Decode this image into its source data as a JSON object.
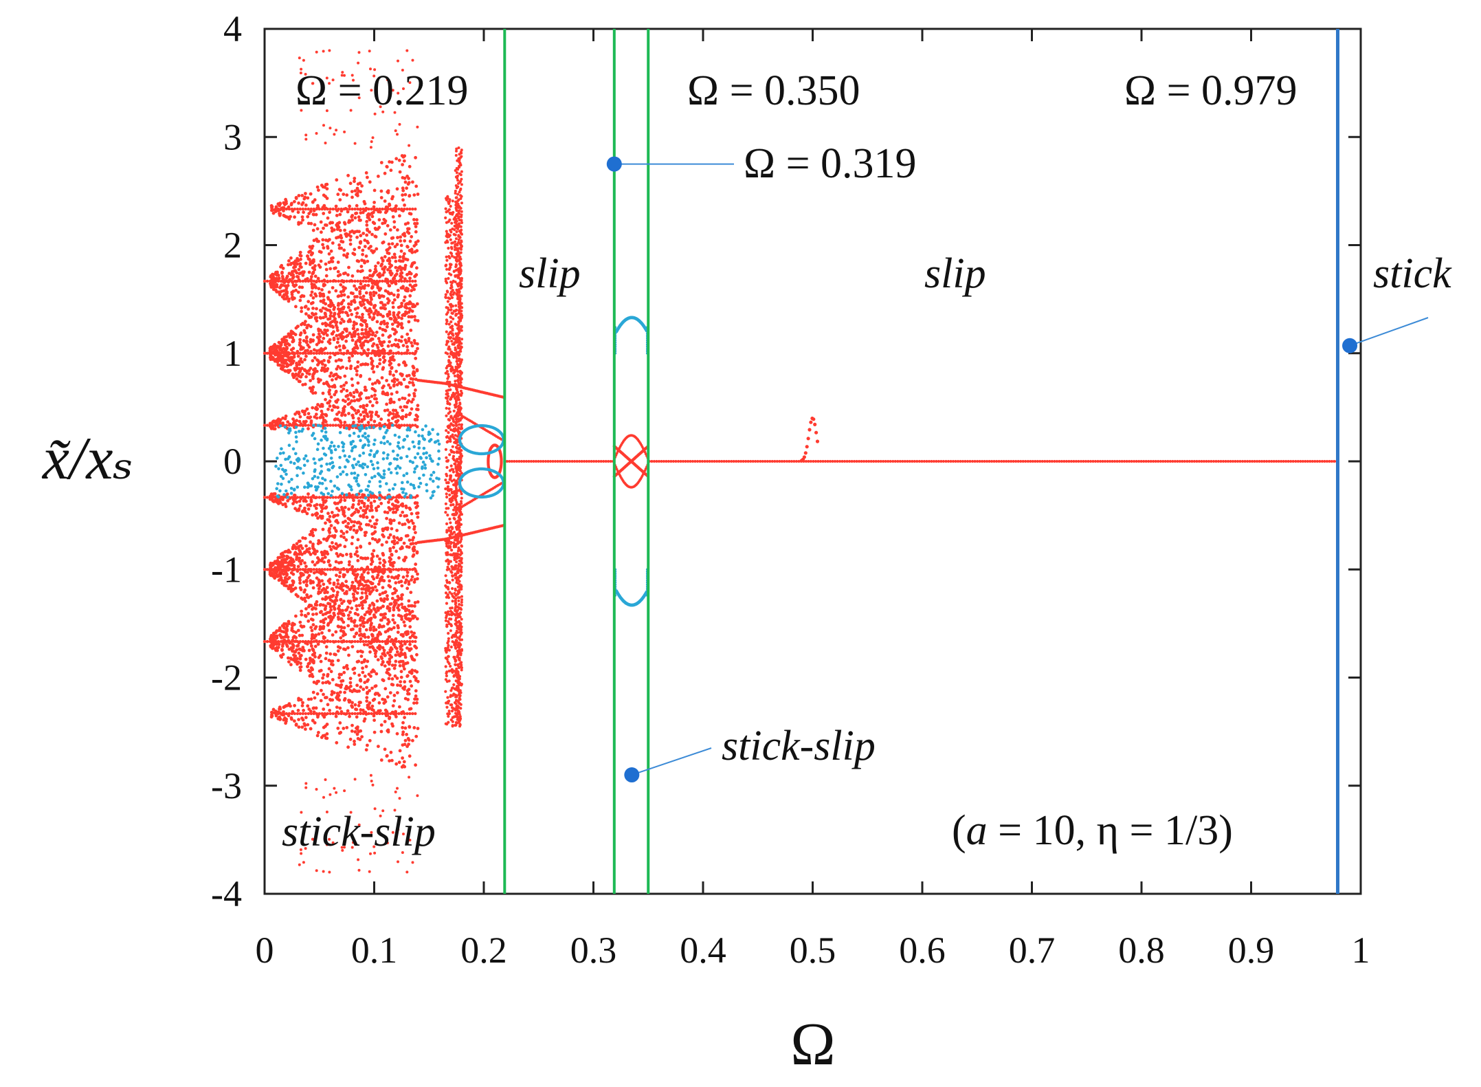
{
  "chart_data": {
    "type": "scatter",
    "title": "",
    "xlabel": "Ω",
    "ylabel": "x̃/xₛ",
    "xlim": [
      0,
      1
    ],
    "ylim": [
      -4,
      4
    ],
    "x_ticks": [
      0,
      0.1,
      0.2,
      0.3,
      0.4,
      0.5,
      0.6,
      0.7,
      0.8,
      0.9,
      1
    ],
    "x_tick_labels": [
      "0",
      "0.1",
      "0.2",
      "0.3",
      "0.4",
      "0.5",
      "0.6",
      "0.7",
      "0.8",
      "0.9",
      "1"
    ],
    "y_ticks": [
      4,
      3,
      2,
      1,
      0,
      -1,
      -2,
      -3,
      -4
    ],
    "y_tick_labels": [
      "4",
      "3",
      "2",
      "1",
      "0",
      "-1",
      "-2",
      "-3",
      "-4"
    ],
    "grid": false,
    "legend": "none",
    "colors": {
      "bifurcation_main": "#ff3b30",
      "bifurcation_secondary": "#2aa7d6",
      "boundary_green": "#1db954",
      "boundary_blue": "#2f78c8",
      "marker": "#1f6fd1",
      "leader_line": "#3b8ad6"
    },
    "boundaries": [
      {
        "omega": 0.219,
        "color": "#1db954",
        "label": "Ω = 0.219"
      },
      {
        "omega": 0.319,
        "color": "#1db954",
        "label": "Ω = 0.319"
      },
      {
        "omega": 0.35,
        "color": "#1db954",
        "label": "Ω = 0.350"
      },
      {
        "omega": 0.979,
        "color": "#2f78c8",
        "label": "Ω = 0.979"
      }
    ],
    "regions": [
      {
        "label": "stick-slip",
        "omega_range": [
          0,
          0.219
        ]
      },
      {
        "label": "slip",
        "omega_range": [
          0.219,
          0.319
        ]
      },
      {
        "label": "stick-slip",
        "omega_range": [
          0.319,
          0.35
        ]
      },
      {
        "label": "slip",
        "omega_range": [
          0.35,
          0.979
        ]
      },
      {
        "label": "stick",
        "omega_range": [
          0.979,
          1
        ]
      }
    ],
    "markers": [
      {
        "omega": 0.319,
        "value": 2.75
      },
      {
        "omega": 0.335,
        "value": -2.9
      },
      {
        "omega": 0.99,
        "value": 1.07
      }
    ],
    "symmetric_branches": [
      {
        "name": "chaotic fan about ±1",
        "omega_range": [
          0,
          0.14
        ],
        "center": 1.0,
        "color": "main"
      },
      {
        "name": "chaotic fan about ±1.67",
        "omega_range": [
          0,
          0.14
        ],
        "center": 1.67,
        "color": "main"
      },
      {
        "name": "chaotic fan about ±2.33",
        "omega_range": [
          0.01,
          0.14
        ],
        "center": 2.33,
        "color": "main"
      },
      {
        "name": "fan about ±0.33",
        "omega_range": [
          0,
          0.14
        ],
        "center": 0.33,
        "color": "main"
      },
      {
        "name": "scatter band 0.165–0.18",
        "omega_range": [
          0.165,
          0.18
        ],
        "center": 0,
        "color": "main"
      },
      {
        "name": "secondary band |x|<0.34",
        "omega_range": [
          0,
          0.14
        ],
        "center": 0,
        "color": "secondary"
      },
      {
        "name": "branch 0.14–0.22 near ±0.75 → ±0.6",
        "omega_range": [
          0.14,
          0.219
        ],
        "center": 0.7,
        "color": "main"
      },
      {
        "name": "secondary loops near ±0.3",
        "omega_range": [
          0.17,
          0.219
        ],
        "center": 0.3,
        "color": "secondary"
      },
      {
        "name": "secondary arcs ±1.3",
        "omega_range": [
          0.319,
          0.35
        ],
        "center": 1.3,
        "color": "secondary"
      },
      {
        "name": "crossing near 0",
        "omega_range": [
          0.319,
          0.35
        ],
        "center": 0,
        "color": "main"
      }
    ],
    "slip_line": {
      "value": 0,
      "omega_range": [
        0.219,
        0.979
      ]
    },
    "resonance_peak": {
      "omega": 0.5,
      "max": 0.4
    },
    "annotations": {
      "omega_219": "Ω = 0.219",
      "omega_350": "Ω = 0.350",
      "omega_979": "Ω = 0.979",
      "omega_319": "Ω = 0.319",
      "slip_left": "slip",
      "slip_right": "slip",
      "stick": "stick",
      "stick_slip_mid": "stick-slip",
      "stick_slip_left": "stick-slip",
      "params_a": "a",
      "params_rest": " = 10, η = 1/3)",
      "params_open": "("
    }
  }
}
